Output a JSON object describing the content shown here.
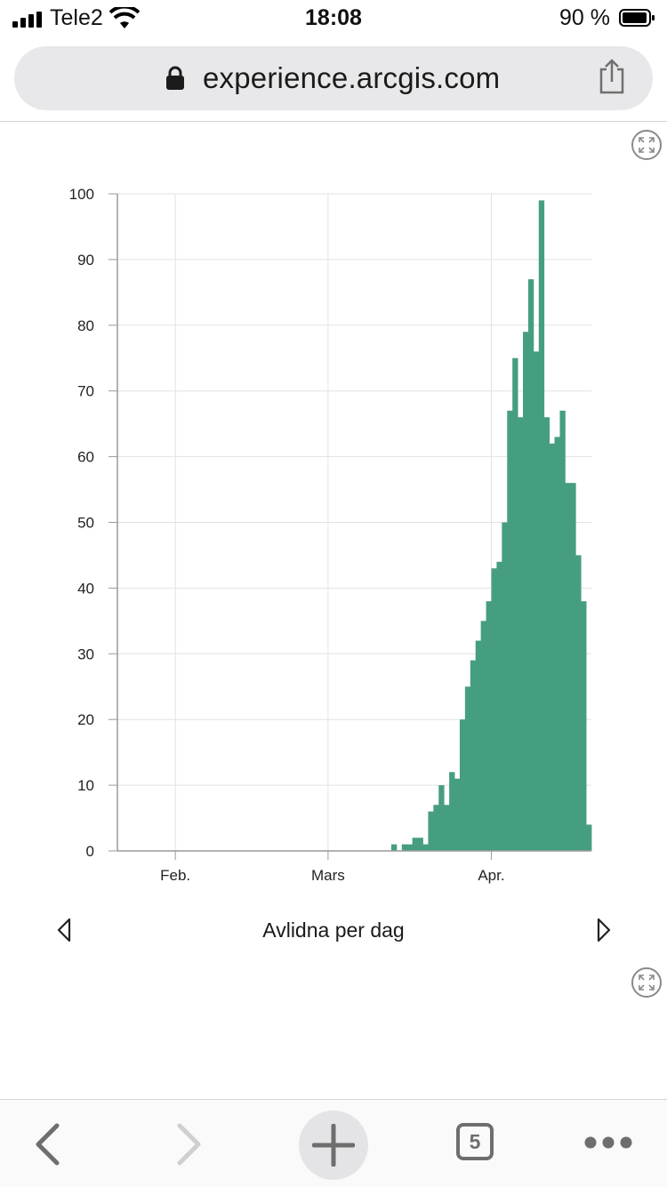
{
  "status_bar": {
    "carrier": "Tele2",
    "time": "18:08",
    "battery_percent": "90 %"
  },
  "browser": {
    "url": "experience.arcgis.com",
    "open_tabs_count": "5",
    "icons": [
      "lock-icon",
      "share-icon",
      "back-icon",
      "forward-icon",
      "new-tab-icon",
      "tabs-icon",
      "more-icon"
    ]
  },
  "chart_panel": {
    "title": "Avlidna per dag",
    "colors": {
      "bar": "#469e80",
      "grid": "#e2e2e2",
      "axis": "#9a9a9a"
    }
  },
  "chart_data": {
    "type": "bar",
    "title": "Avlidna per dag",
    "xlabel": "",
    "ylabel": "",
    "x_start": "2020-01-21",
    "x_tick_labels": [
      {
        "date": "2020-02-01",
        "label": "Feb."
      },
      {
        "date": "2020-03-01",
        "label": "Mars"
      },
      {
        "date": "2020-04-01",
        "label": "Apr."
      }
    ],
    "ylim": [
      0,
      100
    ],
    "y_ticks": [
      0,
      10,
      20,
      30,
      40,
      50,
      60,
      70,
      80,
      90,
      100
    ],
    "grid": true,
    "values": [
      0,
      0,
      0,
      0,
      0,
      0,
      0,
      0,
      0,
      0,
      0,
      0,
      0,
      0,
      0,
      0,
      0,
      0,
      0,
      0,
      0,
      0,
      0,
      0,
      0,
      0,
      0,
      0,
      0,
      0,
      0,
      0,
      0,
      0,
      0,
      0,
      0,
      0,
      0,
      0,
      0,
      0,
      0,
      0,
      0,
      0,
      0,
      0,
      0,
      0,
      0,
      0,
      1,
      0,
      1,
      1,
      2,
      2,
      1,
      6,
      7,
      10,
      7,
      12,
      11,
      20,
      25,
      29,
      32,
      35,
      38,
      43,
      44,
      50,
      67,
      75,
      66,
      79,
      87,
      76,
      99,
      66,
      62,
      63,
      67,
      56,
      56,
      45,
      38,
      4
    ]
  }
}
